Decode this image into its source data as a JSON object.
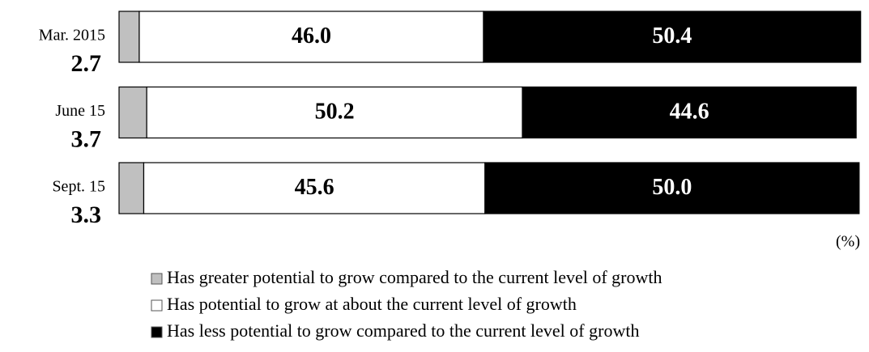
{
  "chart_data": {
    "type": "stacked-barh",
    "categories": [
      "Mar. 2015",
      "June 15",
      "Sept. 15"
    ],
    "series": [
      {
        "name": "Has greater potential to grow compared to the current level of growth",
        "color": "#c0c0c0",
        "values": [
          2.7,
          3.7,
          3.3
        ]
      },
      {
        "name": "Has potential to grow at about the current level of growth",
        "color": "#ffffff",
        "values": [
          46.0,
          50.2,
          45.6
        ],
        "value_labels": [
          "46.0",
          "50.2",
          "45.6"
        ]
      },
      {
        "name": "Has less potential to grow compared to the current level of growth",
        "color": "#000000",
        "values": [
          50.4,
          44.6,
          50.0
        ],
        "value_labels": [
          "50.4",
          "44.6",
          "50.0"
        ]
      }
    ],
    "xlim": [
      0,
      100
    ],
    "unit": "(%)"
  }
}
